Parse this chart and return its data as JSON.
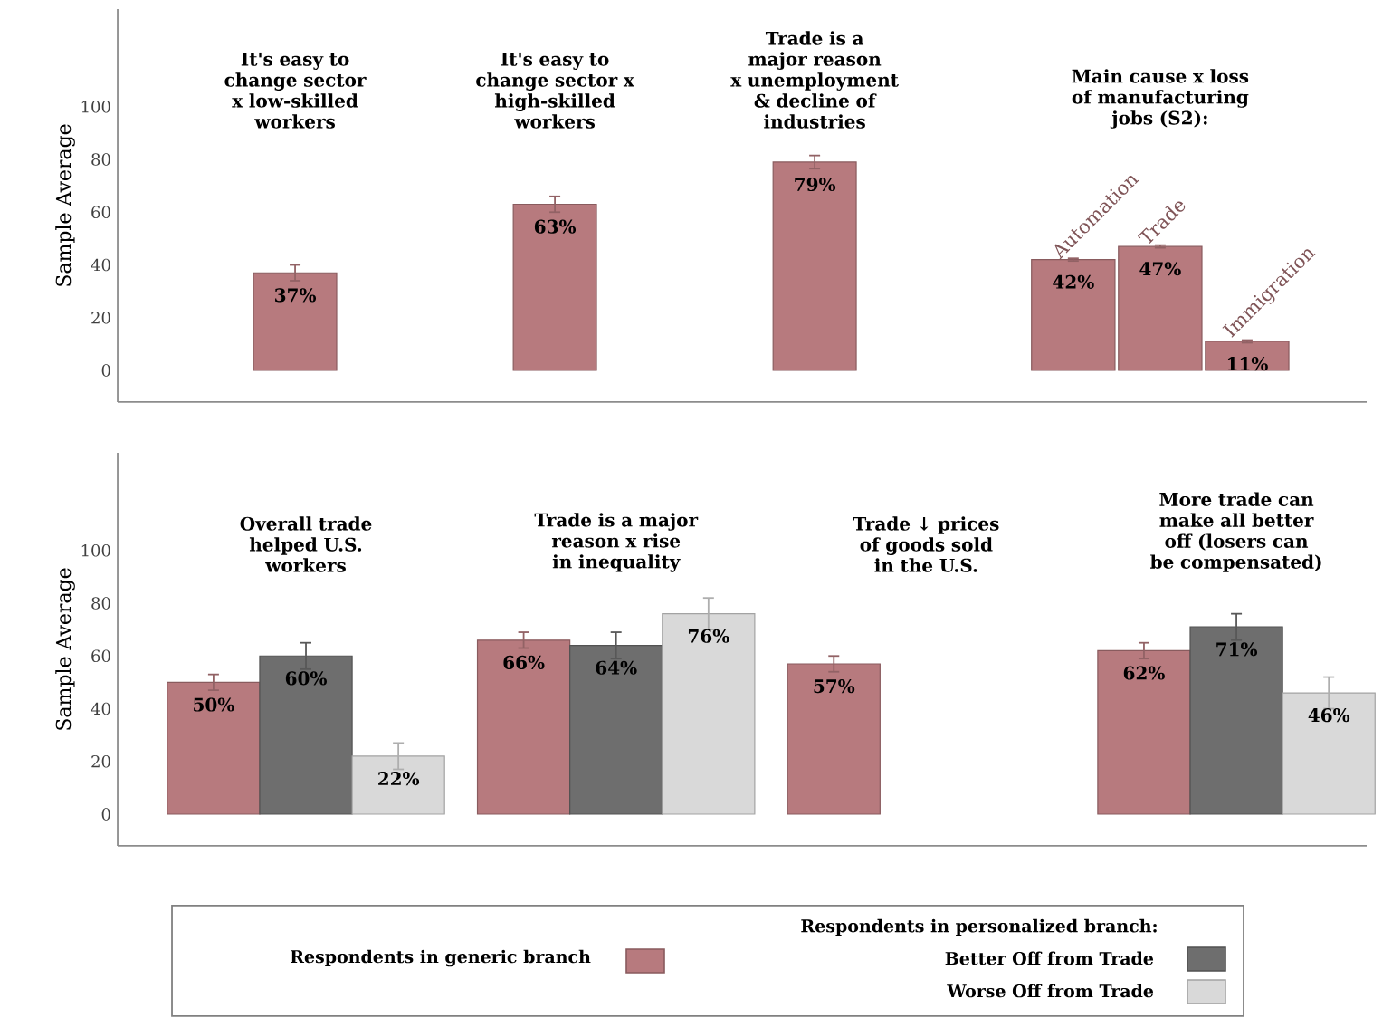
{
  "chart_data": [
    {
      "type": "bar",
      "ylabel": "Sample Average",
      "categories": [
        "It's easy to change sector x low-skilled workers",
        "It's easy to change sector x high-skilled workers",
        "Trade is a major reason x unemployment & decline of industries"
      ],
      "values": [
        37,
        63,
        79
      ],
      "errors": [
        3,
        3,
        2.5
      ],
      "value_labels": [
        "37%",
        "63%",
        "79%"
      ],
      "color": "#b77a7e",
      "ylim": [
        -12,
        137
      ],
      "yticks": [
        0,
        20,
        40,
        60,
        80,
        100
      ]
    },
    {
      "type": "bar",
      "title": "Main cause x loss of manufacturing jobs (S2):",
      "categories": [
        "Automation",
        "Trade",
        "Immigration"
      ],
      "values": [
        42,
        47,
        11
      ],
      "errors": [
        0.5,
        0.5,
        0.5
      ],
      "value_labels": [
        "42%",
        "47%",
        "11%"
      ],
      "color": "#b77a7e",
      "tick_labels": false
    },
    {
      "type": "bar",
      "ylabel": "Sample Average",
      "categories": [
        "Overall trade helped U.S. workers",
        "Trade is a major reason x rise in inequality",
        "Trade ↓ prices of goods sold in the U.S.",
        "More trade can make all better off (losers can be compensated)"
      ],
      "legend": "bottom",
      "legend_title": "Respondents in personalized branch:",
      "ylim": [
        -12,
        137
      ],
      "yticks": [
        0,
        20,
        40,
        60,
        80,
        100
      ],
      "series": [
        {
          "name": "Respondents in generic branch",
          "color": "#b77a7e",
          "values": [
            50,
            66,
            57,
            62
          ],
          "errors": [
            3,
            3,
            3,
            3
          ],
          "value_labels": [
            "50%",
            "66%",
            "57%",
            "62%"
          ]
        },
        {
          "name": "Better Off from Trade",
          "color": "#6e6e6e",
          "values": [
            60,
            64,
            null,
            71
          ],
          "errors": [
            5,
            5,
            null,
            5
          ],
          "value_labels": [
            "60%",
            "64%",
            null,
            "71%"
          ]
        },
        {
          "name": "Worse Off from Trade",
          "color": "#d9d9d9",
          "values": [
            22,
            76,
            null,
            46
          ],
          "errors": [
            5,
            6,
            null,
            6
          ],
          "value_labels": [
            "22%",
            "76%",
            null,
            "46%"
          ]
        }
      ]
    }
  ]
}
